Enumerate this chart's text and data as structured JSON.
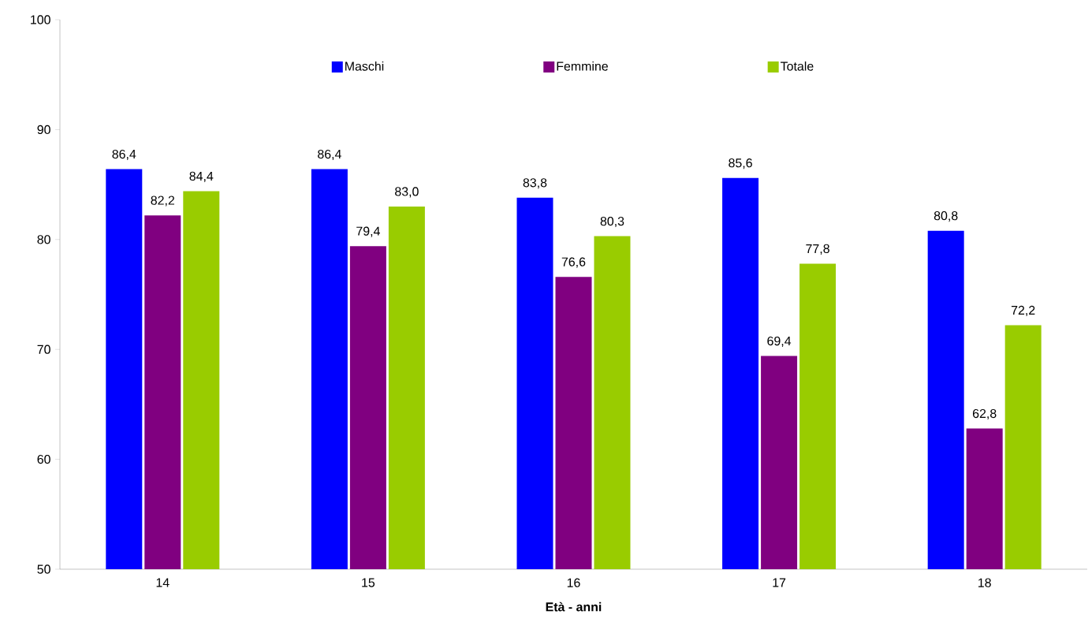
{
  "chart_data": {
    "type": "bar",
    "xlabel": "Età - anni",
    "categories": [
      "14",
      "15",
      "16",
      "17",
      "18"
    ],
    "series": [
      {
        "name": "Maschi",
        "color": "#0000ff",
        "values": [
          86.4,
          86.4,
          83.8,
          85.6,
          80.8
        ],
        "value_labels": [
          "86,4",
          "86,4",
          "83,8",
          "85,6",
          "80,8"
        ]
      },
      {
        "name": "Femmine",
        "color": "#800080",
        "values": [
          82.2,
          79.4,
          76.6,
          69.4,
          62.8
        ],
        "value_labels": [
          "82,2",
          "79,4",
          "76,6",
          "69,4",
          "62,8"
        ]
      },
      {
        "name": "Totale",
        "color": "#99cc00",
        "values": [
          84.4,
          83.0,
          80.3,
          77.8,
          72.2
        ],
        "value_labels": [
          "84,4",
          "83,0",
          "80,3",
          "77,8",
          "72,2"
        ]
      }
    ],
    "ylim": [
      50,
      100
    ],
    "yticks": [
      50,
      60,
      70,
      80,
      90,
      100
    ],
    "legend": "top",
    "grid": false
  }
}
